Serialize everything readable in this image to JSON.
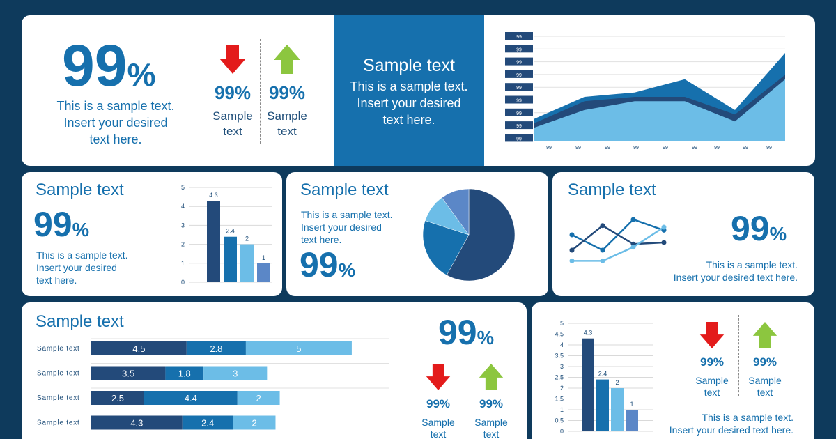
{
  "colors": {
    "dark": "#234a7a",
    "mid": "#1670ad",
    "light": "#6cbde7",
    "pale": "#5b87c7",
    "red": "#e31b1b",
    "green": "#8cc63f",
    "navy": "#0e3a5c"
  },
  "card1": {
    "big": "99",
    "pct": "%",
    "text": "This is a sample text.\nInsert your desired\ntext here.",
    "down": {
      "value": "99%",
      "label": "Sample\ntext"
    },
    "up": {
      "value": "99%",
      "label": "Sample\ntext"
    }
  },
  "card2": {
    "title": "Sample text",
    "text": "This is a sample text.\nInsert your desired\ntext here."
  },
  "card3": {
    "chart_data": {
      "type": "area",
      "y_tick_labels": [
        "99",
        "99",
        "99",
        "99",
        "99",
        "99",
        "99",
        "99",
        "99"
      ],
      "x_tick_labels": [
        "99",
        "99",
        "99",
        "99",
        "99",
        "99",
        "99",
        "99",
        "99"
      ],
      "series": [
        {
          "values": [
            0.25,
            0.5,
            0.55,
            0.7,
            0.35,
            1.0
          ]
        },
        {
          "values": [
            0.2,
            0.45,
            0.5,
            0.5,
            0.3,
            0.75
          ]
        },
        {
          "values": [
            0.15,
            0.35,
            0.45,
            0.45,
            0.22,
            0.7
          ]
        }
      ]
    }
  },
  "card4": {
    "title": "Sample text",
    "big": "99",
    "pct": "%",
    "text": "This is a sample text.\nInsert your desired\ntext here.",
    "chart_data": {
      "type": "bar",
      "values": [
        4.3,
        2.4,
        2,
        1
      ],
      "labels": [
        "4.3",
        "2.4",
        "2",
        "1"
      ],
      "ylim": [
        0,
        5
      ],
      "y_ticks": [
        "0",
        "1",
        "2",
        "3",
        "4",
        "5"
      ]
    }
  },
  "card5": {
    "title": "Sample text",
    "text": "This is a sample text.\nInsert your desired\ntext here.",
    "big": "99",
    "pct": "%",
    "chart_data": {
      "type": "pie",
      "values": [
        58,
        22,
        10,
        10
      ]
    }
  },
  "card6": {
    "title": "Sample text",
    "big": "99",
    "pct": "%",
    "text": "This is a sample text.\nInsert your desired text here.",
    "chart_data": {
      "type": "line",
      "series": [
        {
          "values": [
            2,
            1,
            3,
            2.3
          ]
        },
        {
          "values": [
            1,
            2.6,
            1.4,
            1.5
          ]
        },
        {
          "values": [
            0.3,
            0.3,
            1.2,
            2.5
          ]
        }
      ]
    }
  },
  "card7": {
    "title": "Sample text",
    "big": "99",
    "pct": "%",
    "down": {
      "value": "99%",
      "label": "Sample\ntext"
    },
    "up": {
      "value": "99%",
      "label": "Sample\ntext"
    },
    "chart_data": {
      "type": "bar",
      "orientation": "horizontal-stacked",
      "categories": [
        "Sample text",
        "Sample text",
        "Sample text",
        "Sample text"
      ],
      "series": [
        {
          "values": [
            4.5,
            3.5,
            2.5,
            4.3
          ]
        },
        {
          "values": [
            2.8,
            1.8,
            4.4,
            2.4
          ]
        },
        {
          "values": [
            5,
            3,
            2,
            2
          ]
        }
      ]
    }
  },
  "card8": {
    "text": "This is a sample text.\nInsert your desired text here.",
    "down": {
      "value": "99%",
      "label": "Sample\ntext"
    },
    "up": {
      "value": "99%",
      "label": "Sample\ntext"
    },
    "chart_data": {
      "type": "bar",
      "values": [
        4.3,
        2.4,
        2,
        1
      ],
      "labels": [
        "4.3",
        "2.4",
        "2",
        "1"
      ],
      "ylim": [
        0,
        5
      ],
      "y_ticks": [
        "0",
        "0.5",
        "1",
        "1.5",
        "2",
        "2.5",
        "3",
        "3.5",
        "4",
        "4.5",
        "5"
      ]
    }
  }
}
